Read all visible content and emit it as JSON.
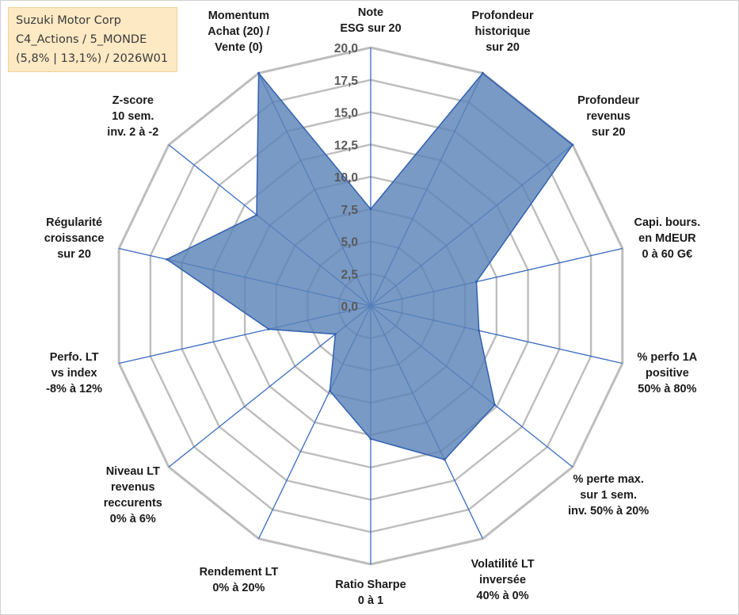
{
  "info_box": {
    "company": "Suzuki Motor Corp",
    "portfolio": "C4_Actions / 5_MONDE",
    "params": "(5,8% | 13,1%) / 2026W01"
  },
  "colors": {
    "fill": "#5b84b8",
    "stroke": "#3060b0",
    "grid": "#bdbdbd",
    "spoke": "#3a6bc2"
  },
  "chart_data": {
    "type": "radar",
    "title": "",
    "rmin": 0,
    "rmax": 20,
    "tick_values": [
      0,
      2.5,
      5,
      7.5,
      10,
      12.5,
      15,
      17.5,
      20
    ],
    "tick_labels": [
      "0,0",
      "2,5",
      "5,0",
      "7,5",
      "10,0",
      "12,5",
      "15,0",
      "17,5",
      "20,0"
    ],
    "axes": [
      {
        "label_lines": [
          "Note",
          "ESG sur 20"
        ],
        "value": 7.5
      },
      {
        "label_lines": [
          "Profondeur",
          "historique",
          "sur 20"
        ],
        "value": 20
      },
      {
        "label_lines": [
          "Profondeur",
          "revenus",
          "sur 20"
        ],
        "value": 20
      },
      {
        "label_lines": [
          "Capi. bours.",
          "en MdEUR",
          "0 à 60 G€"
        ],
        "value": 8.4
      },
      {
        "label_lines": [
          "% perfo 1A",
          "positive",
          "50% à 80%"
        ],
        "value": 8.6
      },
      {
        "label_lines": [
          "% perte max.",
          "sur 1 sem.",
          "inv. 50% à 20%"
        ],
        "value": 12.3
      },
      {
        "label_lines": [
          "Volatilité LT",
          "inversée",
          "40% à 0%"
        ],
        "value": 13.2
      },
      {
        "label_lines": [
          "Ratio Sharpe",
          "0 à 1"
        ],
        "value": 10.3
      },
      {
        "label_lines": [
          "Rendement LT",
          "0% à 20%"
        ],
        "value": 7.3
      },
      {
        "label_lines": [
          "Niveau LT",
          "revenus",
          "reccurents",
          "0% à 6%"
        ],
        "value": 3.5
      },
      {
        "label_lines": [
          "Perfo. LT",
          "vs index",
          "-8% à 12%"
        ],
        "value": 8.1
      },
      {
        "label_lines": [
          "Régularité",
          "croissance",
          "sur 20"
        ],
        "value": 16.2
      },
      {
        "label_lines": [
          "Z-score",
          "10 sem.",
          "inv. 2 à -2"
        ],
        "value": 11.3
      },
      {
        "label_lines": [
          "Momentum",
          "Achat (20) /",
          "Vente (0)"
        ],
        "value": 20
      }
    ]
  }
}
